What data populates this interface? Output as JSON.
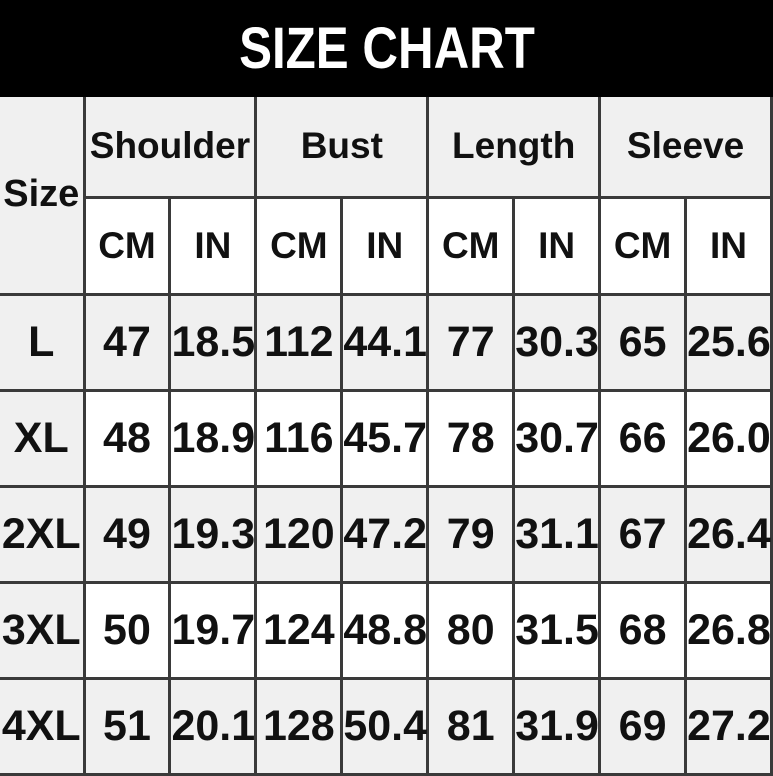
{
  "chart_data": {
    "type": "table",
    "title": "SIZE CHART",
    "corner_header": "Size",
    "group_headers": [
      "Shoulder",
      "Bust",
      "Length",
      "Sleeve"
    ],
    "unit_headers": [
      "CM",
      "IN",
      "CM",
      "IN",
      "CM",
      "IN",
      "CM",
      "IN"
    ],
    "rows": [
      {
        "size": "L",
        "values": [
          "47",
          "18.5",
          "112",
          "44.1",
          "77",
          "30.3",
          "65",
          "25.6"
        ]
      },
      {
        "size": "XL",
        "values": [
          "48",
          "18.9",
          "116",
          "45.7",
          "78",
          "30.7",
          "66",
          "26.0"
        ]
      },
      {
        "size": "2XL",
        "values": [
          "49",
          "19.3",
          "120",
          "47.2",
          "79",
          "31.1",
          "67",
          "26.4"
        ]
      },
      {
        "size": "3XL",
        "values": [
          "50",
          "19.7",
          "124",
          "48.8",
          "80",
          "31.5",
          "68",
          "26.8"
        ]
      },
      {
        "size": "4XL",
        "values": [
          "51",
          "20.1",
          "128",
          "50.4",
          "81",
          "31.9",
          "69",
          "27.2"
        ]
      }
    ]
  },
  "colors": {
    "banner_bg": "#000000",
    "banner_text": "#ffffff",
    "cell_alt_bg": "#f0f0f0",
    "cell_bg": "#ffffff",
    "border": "#3a3a3a",
    "text": "#111111"
  }
}
